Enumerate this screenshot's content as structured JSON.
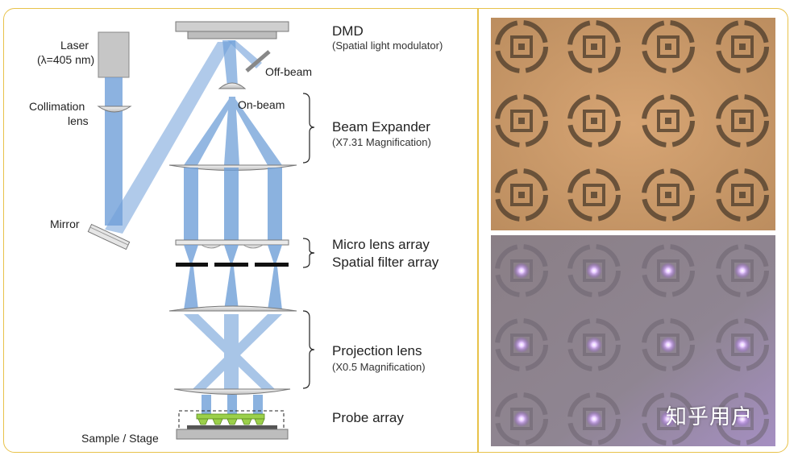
{
  "labels": {
    "laser_title": "Laser",
    "laser_wavelength": "(λ=405 nm)",
    "collimation_lens": "Collimation",
    "collimation_lens_2": "lens",
    "mirror": "Mirror",
    "dmd": "DMD",
    "dmd_sub": "(Spatial light modulator)",
    "off_beam": "Off-beam",
    "on_beam": "On-beam",
    "beam_expander": "Beam Expander",
    "beam_expander_sub": "(X7.31 Magnification)",
    "micro_lens_array": "Micro lens array",
    "spatial_filter_array": "Spatial filter array",
    "projection_lens": "Projection lens",
    "projection_lens_sub": "(X0.5 Magnification)",
    "probe_array": "Probe array",
    "sample_stage": "Sample / Stage"
  },
  "watermark": "知乎用户",
  "colors": {
    "border": "#e8c24a",
    "beam": "#6f9fd8",
    "probe": "#9bd04a"
  }
}
